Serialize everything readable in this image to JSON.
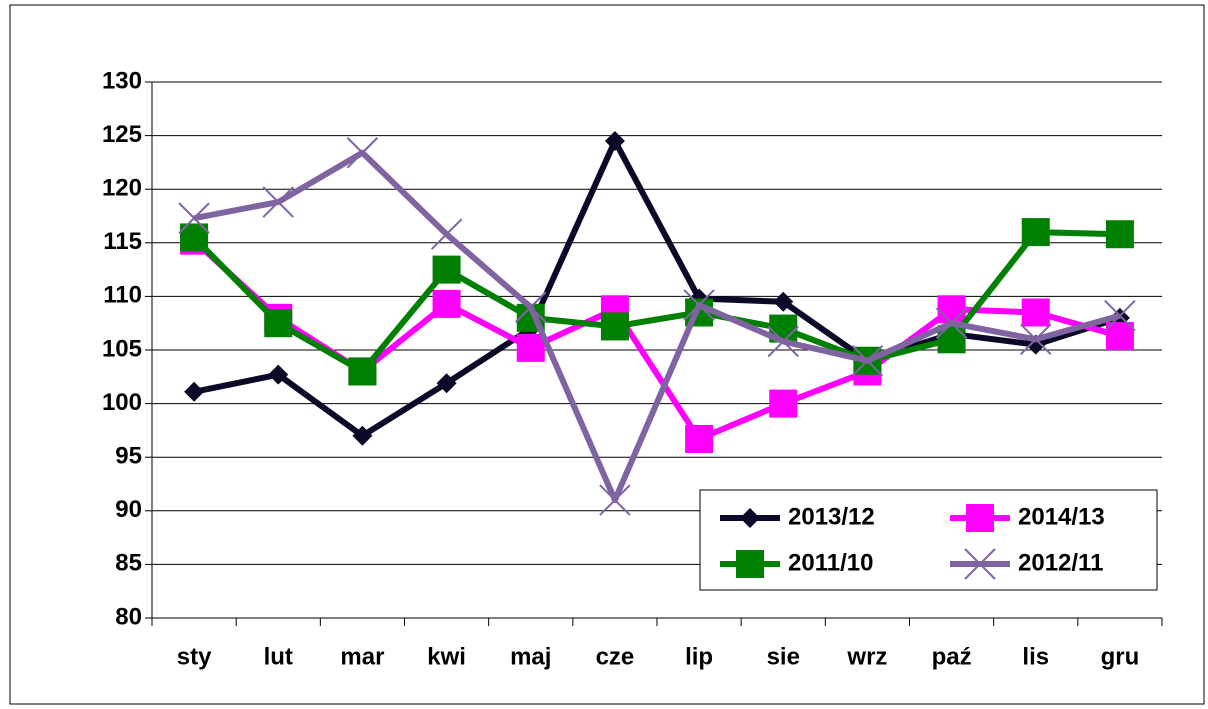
{
  "chart_data": {
    "type": "line",
    "categories": [
      "sty",
      "lut",
      "mar",
      "kwi",
      "maj",
      "cze",
      "lip",
      "sie",
      "wrz",
      "paź",
      "lis",
      "gru"
    ],
    "series": [
      {
        "name": "2013/12",
        "color": "#0a0a28",
        "marker": "diamond",
        "values": [
          101.1,
          102.7,
          97,
          101.9,
          107,
          124.5,
          109.8,
          109.5,
          104,
          106.5,
          105.5,
          108
        ]
      },
      {
        "name": "2014/13",
        "color": "#ff00ff",
        "marker": "square",
        "values": [
          115.2,
          108,
          103,
          109.3,
          105.2,
          108.8,
          96.7,
          100,
          103,
          108.8,
          108.5,
          106.3
        ]
      },
      {
        "name": "2011/10",
        "color": "#008000",
        "marker": "square",
        "values": [
          115.5,
          107.5,
          103,
          112.5,
          108,
          107.2,
          108.5,
          107,
          104,
          106,
          116,
          115.8
        ]
      },
      {
        "name": "2012/11",
        "color": "#8064a2",
        "marker": "x",
        "values": [
          117.3,
          118.8,
          123.4,
          115.8,
          109,
          91,
          109.2,
          105.8,
          104,
          107.5,
          106,
          108.2
        ]
      }
    ],
    "ylim": [
      80,
      130
    ],
    "yticks": [
      80,
      85,
      90,
      95,
      100,
      105,
      110,
      115,
      120,
      125,
      130
    ],
    "grid": true,
    "legend": "lower-right"
  }
}
